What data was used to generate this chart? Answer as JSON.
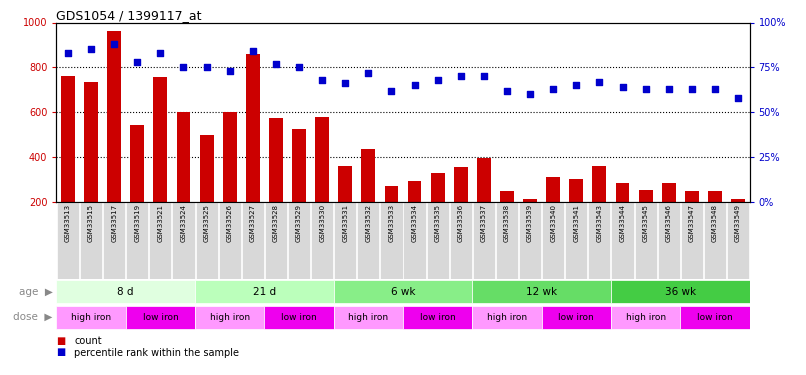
{
  "title": "GDS1054 / 1399117_at",
  "samples": [
    "GSM33513",
    "GSM33515",
    "GSM33517",
    "GSM33519",
    "GSM33521",
    "GSM33524",
    "GSM33525",
    "GSM33526",
    "GSM33527",
    "GSM33528",
    "GSM33529",
    "GSM33530",
    "GSM33531",
    "GSM33532",
    "GSM33533",
    "GSM33534",
    "GSM33535",
    "GSM33536",
    "GSM33537",
    "GSM33538",
    "GSM33539",
    "GSM33540",
    "GSM33541",
    "GSM33543",
    "GSM33544",
    "GSM33545",
    "GSM33546",
    "GSM33547",
    "GSM33548",
    "GSM33549"
  ],
  "counts": [
    760,
    735,
    960,
    545,
    755,
    600,
    500,
    600,
    860,
    575,
    525,
    580,
    360,
    435,
    270,
    295,
    330,
    355,
    395,
    250,
    215,
    310,
    300,
    360,
    285,
    255,
    285,
    250,
    250,
    215
  ],
  "percentiles": [
    83,
    85,
    88,
    78,
    83,
    75,
    75,
    73,
    84,
    77,
    75,
    68,
    66,
    72,
    62,
    65,
    68,
    70,
    70,
    62,
    60,
    63,
    65,
    67,
    64,
    63,
    63,
    63,
    63,
    58
  ],
  "bar_color": "#cc0000",
  "dot_color": "#0000cc",
  "ylim_left": [
    200,
    1000
  ],
  "ylim_right": [
    0,
    100
  ],
  "yticks_left": [
    200,
    400,
    600,
    800,
    1000
  ],
  "yticks_right": [
    0,
    25,
    50,
    75,
    100
  ],
  "age_groups": [
    {
      "label": "8 d",
      "start": 0,
      "end": 6,
      "color": "#e0ffe0"
    },
    {
      "label": "21 d",
      "start": 6,
      "end": 12,
      "color": "#bbffbb"
    },
    {
      "label": "6 wk",
      "start": 12,
      "end": 18,
      "color": "#88ee88"
    },
    {
      "label": "12 wk",
      "start": 18,
      "end": 24,
      "color": "#66dd66"
    },
    {
      "label": "36 wk",
      "start": 24,
      "end": 30,
      "color": "#44cc44"
    }
  ],
  "dose_groups": [
    {
      "label": "high iron",
      "start": 0,
      "end": 3,
      "color": "#ff99ff"
    },
    {
      "label": "low iron",
      "start": 3,
      "end": 6,
      "color": "#ee00ee"
    },
    {
      "label": "high iron",
      "start": 6,
      "end": 9,
      "color": "#ff99ff"
    },
    {
      "label": "low iron",
      "start": 9,
      "end": 12,
      "color": "#ee00ee"
    },
    {
      "label": "high iron",
      "start": 12,
      "end": 15,
      "color": "#ff99ff"
    },
    {
      "label": "low iron",
      "start": 15,
      "end": 18,
      "color": "#ee00ee"
    },
    {
      "label": "high iron",
      "start": 18,
      "end": 21,
      "color": "#ff99ff"
    },
    {
      "label": "low iron",
      "start": 21,
      "end": 24,
      "color": "#ee00ee"
    },
    {
      "label": "high iron",
      "start": 24,
      "end": 27,
      "color": "#ff99ff"
    },
    {
      "label": "low iron",
      "start": 27,
      "end": 30,
      "color": "#ee00ee"
    }
  ],
  "age_label": "age",
  "dose_label": "dose",
  "legend_count": "count",
  "legend_pct": "percentile rank within the sample",
  "bg_color": "#ffffff",
  "tick_label_color_left": "#cc0000",
  "tick_label_color_right": "#0000cc",
  "grid_color": "#000000",
  "bar_label_bg": "#d8d8d8"
}
